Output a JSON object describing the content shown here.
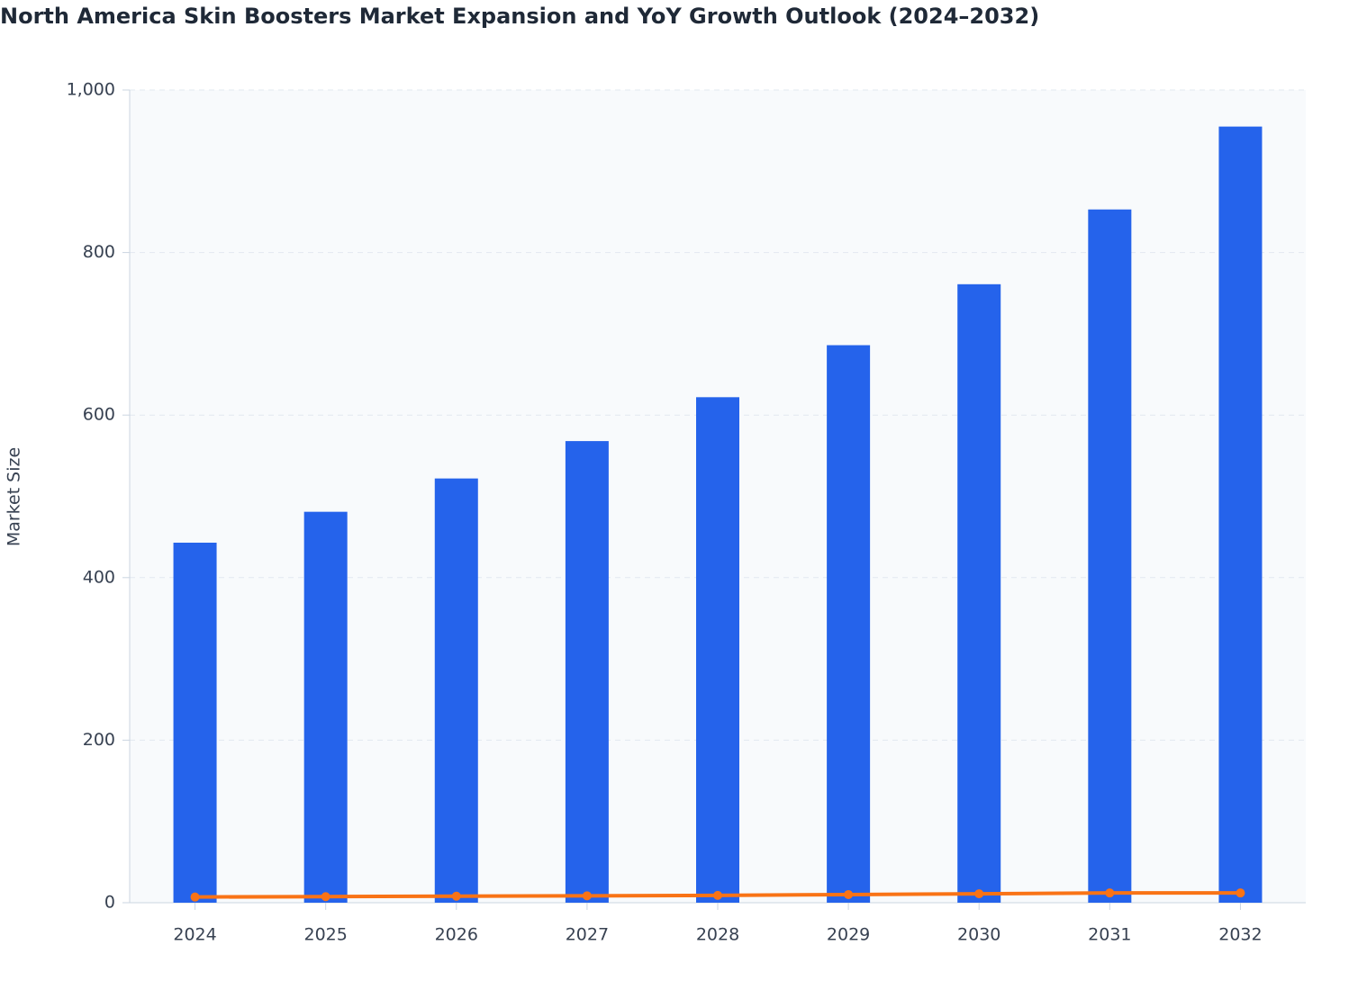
{
  "chart_data": {
    "type": "bar",
    "title": "North America Skin Boosters Market Expansion and YoY Growth Outlook (2024–2032)",
    "y_label": "Market Size",
    "categories": [
      "2024",
      "2025",
      "2026",
      "2027",
      "2028",
      "2029",
      "2030",
      "2031",
      "2032"
    ],
    "series": [
      {
        "type": "bar",
        "color": "#2563eb",
        "values": [
          443,
          481,
          522,
          568,
          622,
          686,
          761,
          853,
          955
        ]
      },
      {
        "type": "line",
        "color": "#f97316",
        "values": [
          7,
          7.5,
          8,
          8.5,
          9,
          10,
          11,
          12,
          12
        ]
      }
    ],
    "ylim": [
      0,
      1000
    ],
    "yticks": [
      0,
      200,
      400,
      600,
      800,
      {
        "value": 1000,
        "label": "1,000"
      }
    ],
    "grid": true
  }
}
